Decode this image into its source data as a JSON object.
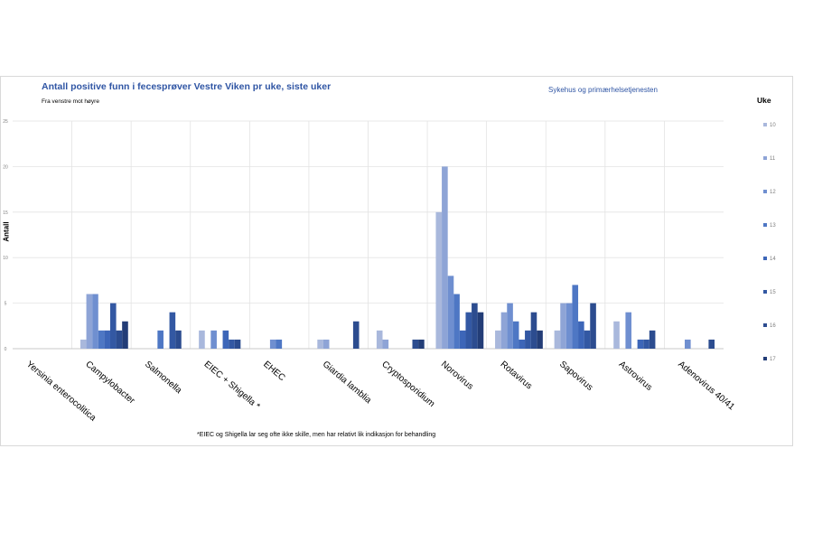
{
  "chart_data": {
    "type": "bar",
    "title": "Antall positive funn i fecesprøver Vestre Viken pr uke, siste uker",
    "subtitle": "Fra venstre mot høyre",
    "source": "Sykehus og primærhelsetjenesten",
    "ylabel": "Antall",
    "xlabel": "",
    "ylim": [
      0,
      25
    ],
    "yticks": [
      0,
      5,
      10,
      15,
      20,
      25
    ],
    "grid": true,
    "legend_title": "Uke",
    "legend_position": "right",
    "footnote": "*EIEC og Shigella lar seg ofte ikke skille, men har relativt lik indikasjon for behandling",
    "categories": [
      "Yersinia enterocolitica",
      "Campylobacter",
      "Salmonella",
      "EIEC + Shigella *",
      "EHEC",
      "Giardia lamblia",
      "Cryptosporidium",
      "Norovirus",
      "Rotavirus",
      "Sapovirus",
      "Astrovirus",
      "Adenovirus 40/41"
    ],
    "series": [
      {
        "name": "10",
        "color": "#a9b8dc",
        "values": [
          0,
          1,
          0,
          2,
          0,
          1,
          2,
          15,
          2,
          2,
          3,
          0
        ]
      },
      {
        "name": "11",
        "color": "#8ea4d6",
        "values": [
          0,
          6,
          0,
          0,
          0,
          1,
          1,
          20,
          4,
          5,
          0,
          0
        ]
      },
      {
        "name": "12",
        "color": "#6f8fd0",
        "values": [
          0,
          6,
          0,
          2,
          1,
          0,
          0,
          8,
          5,
          5,
          4,
          1
        ]
      },
      {
        "name": "13",
        "color": "#4e77c4",
        "values": [
          0,
          2,
          2,
          0,
          1,
          0,
          0,
          6,
          3,
          7,
          0,
          0
        ]
      },
      {
        "name": "14",
        "color": "#3d66b8",
        "values": [
          0,
          2,
          0,
          2,
          0,
          0,
          0,
          2,
          1,
          3,
          1,
          0
        ]
      },
      {
        "name": "15",
        "color": "#3358a3",
        "values": [
          0,
          5,
          4,
          1,
          0,
          0,
          0,
          4,
          2,
          2,
          1,
          0
        ]
      },
      {
        "name": "16",
        "color": "#2c4c8f",
        "values": [
          0,
          2,
          2,
          1,
          0,
          3,
          1,
          5,
          4,
          5,
          2,
          1
        ]
      },
      {
        "name": "17",
        "color": "#233d77",
        "values": [
          0,
          3,
          0,
          0,
          0,
          0,
          1,
          4,
          2,
          0,
          0,
          0
        ]
      }
    ]
  }
}
